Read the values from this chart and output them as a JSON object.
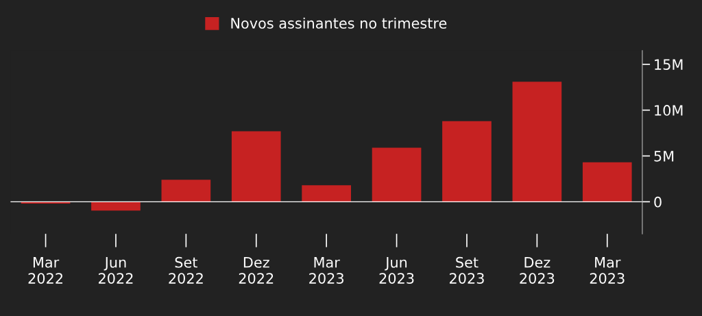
{
  "chart_data": {
    "type": "bar",
    "categories": [
      "Mar\n2022",
      "Jun\n2022",
      "Set\n2022",
      "Dez\n2022",
      "Mar\n2023",
      "Jun\n2023",
      "Set\n2023",
      "Dez\n2023",
      "Mar\n2023"
    ],
    "series": [
      {
        "name": "Novos assinantes no trimestre",
        "color": "#c62222",
        "values": [
          -0.2,
          -0.97,
          2.4,
          7.7,
          1.8,
          5.9,
          8.8,
          13.1,
          4.3
        ]
      }
    ],
    "ylim": [
      -3.5,
      16.5
    ],
    "yticks": [
      {
        "value": 15,
        "label": "15M"
      },
      {
        "value": 10,
        "label": "10M"
      },
      {
        "value": 5,
        "label": "5M"
      },
      0
    ],
    "ref_lines": [
      {
        "axis": "y",
        "value": 0,
        "color": "#ffffff"
      }
    ],
    "grid": false,
    "legend": "top"
  }
}
